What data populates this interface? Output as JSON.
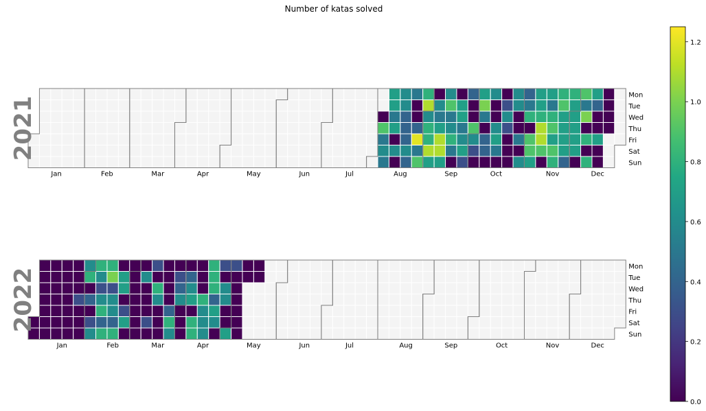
{
  "chart_data": {
    "type": "heatmap",
    "title": "Number of katas solved",
    "months": [
      "Jan",
      "Feb",
      "Mar",
      "Apr",
      "May",
      "Jun",
      "Jul",
      "Aug",
      "Sep",
      "Oct",
      "Nov",
      "Dec"
    ],
    "weekdays": [
      "Mon",
      "Tue",
      "Wed",
      "Thu",
      "Fri",
      "Sat",
      "Sun"
    ],
    "colorbar": {
      "min": 0.0,
      "max": 1.25,
      "ticks": [
        "0.0",
        "0.2",
        "0.4",
        "0.6",
        "0.8",
        "1.0",
        "1.2"
      ]
    },
    "colormap": "viridis",
    "missing_color": "#f4f4f4",
    "years": [
      {
        "year": "2021",
        "week_rows_note": "weeks indexed from week 0 containing Jan 1; rows Mon..Sun",
        "weeks": [
          {
            "week": 31,
            "values": [
              null,
              null,
              0.0,
              0.9,
              0.5,
              0.6,
              0.5
            ]
          },
          {
            "week": 32,
            "values": [
              0.7,
              0.7,
              0.5,
              0.7,
              0.0,
              0.6,
              0.0
            ]
          },
          {
            "week": 33,
            "values": [
              0.6,
              0.6,
              0.4,
              0.4,
              0.4,
              0.6,
              0.4
            ]
          },
          {
            "week": 34,
            "values": [
              0.5,
              0.0,
              0.0,
              0.4,
              1.2,
              0.5,
              0.9
            ]
          },
          {
            "week": 35,
            "values": [
              0.8,
              1.1,
              0.6,
              0.8,
              0.8,
              1.1,
              0.7
            ]
          },
          {
            "week": 36,
            "values": [
              0.0,
              0.6,
              0.5,
              0.7,
              1.1,
              1.1,
              0.7
            ]
          },
          {
            "week": 37,
            "values": [
              0.6,
              0.9,
              0.5,
              0.6,
              0.8,
              0.5,
              0.0
            ]
          },
          {
            "week": 38,
            "values": [
              0.0,
              0.7,
              0.7,
              0.5,
              0.6,
              0.7,
              0.3
            ]
          },
          {
            "week": 39,
            "values": [
              0.4,
              0.0,
              0.0,
              0.9,
              0.6,
              0.3,
              0.0
            ]
          },
          {
            "week": 40,
            "values": [
              0.7,
              1.0,
              0.5,
              0.0,
              0.4,
              0.4,
              0.0
            ]
          },
          {
            "week": 41,
            "values": [
              0.6,
              0.0,
              0.0,
              0.6,
              0.7,
              0.5,
              0.0
            ]
          },
          {
            "week": 42,
            "values": [
              0.0,
              0.3,
              0.6,
              0.3,
              0.0,
              0.0,
              0.0
            ]
          },
          {
            "week": 43,
            "values": [
              0.6,
              0.6,
              0.0,
              0.0,
              0.5,
              0.0,
              0.6
            ]
          },
          {
            "week": 44,
            "values": [
              0.4,
              0.5,
              0.8,
              0.0,
              0.9,
              0.9,
              0.7
            ]
          },
          {
            "week": 45,
            "values": [
              0.7,
              0.7,
              0.8,
              1.1,
              1.1,
              0.9,
              0.0
            ]
          },
          {
            "week": 46,
            "values": [
              0.7,
              0.5,
              0.8,
              0.9,
              0.7,
              0.9,
              0.8
            ]
          },
          {
            "week": 47,
            "values": [
              0.8,
              0.9,
              0.7,
              0.7,
              0.7,
              0.7,
              0.4
            ]
          },
          {
            "week": 48,
            "values": [
              0.8,
              0.7,
              0.7,
              0.7,
              0.7,
              0.7,
              0.0
            ]
          },
          {
            "week": 49,
            "values": [
              0.9,
              0.5,
              1.0,
              0.0,
              0.8,
              0.0,
              0.8
            ]
          },
          {
            "week": 50,
            "values": [
              0.7,
              0.4,
              0.0,
              0.0,
              0.7,
              0.0,
              0.0
            ]
          },
          {
            "week": 51,
            "values": [
              0.0,
              0.0,
              0.0,
              0.0,
              null,
              null,
              null
            ]
          }
        ]
      },
      {
        "year": "2022",
        "weeks": [
          {
            "week": 0,
            "values": [
              null,
              null,
              null,
              null,
              null,
              0.0,
              0.0
            ]
          },
          {
            "week": 1,
            "values": [
              0.0,
              0.0,
              0.0,
              0.0,
              0.0,
              0.0,
              0.0
            ]
          },
          {
            "week": 2,
            "values": [
              0.0,
              0.0,
              0.0,
              0.0,
              0.0,
              0.0,
              0.0
            ]
          },
          {
            "week": 3,
            "values": [
              0.0,
              0.0,
              0.0,
              0.0,
              0.0,
              0.0,
              0.0
            ]
          },
          {
            "week": 4,
            "values": [
              0.0,
              0.0,
              0.0,
              0.3,
              0.0,
              0.0,
              0.0
            ]
          },
          {
            "week": 5,
            "values": [
              0.6,
              0.8,
              0.0,
              0.4,
              0.0,
              0.3,
              0.6
            ]
          },
          {
            "week": 6,
            "values": [
              0.8,
              0.6,
              0.3,
              0.6,
              0.8,
              0.4,
              0.8
            ]
          },
          {
            "week": 7,
            "values": [
              0.8,
              1.0,
              0.3,
              0.6,
              0.6,
              0.4,
              0.8
            ]
          },
          {
            "week": 8,
            "values": [
              0.0,
              0.7,
              0.7,
              0.0,
              0.3,
              0.7,
              0.0
            ]
          },
          {
            "week": 9,
            "values": [
              0.0,
              0.0,
              0.0,
              0.0,
              0.0,
              0.0,
              0.0
            ]
          },
          {
            "week": 10,
            "values": [
              0.0,
              0.6,
              0.0,
              0.0,
              0.0,
              0.3,
              0.0
            ]
          },
          {
            "week": 11,
            "values": [
              0.3,
              0.0,
              0.8,
              0.6,
              0.0,
              0.0,
              0.0
            ]
          },
          {
            "week": 12,
            "values": [
              0.0,
              0.0,
              0.0,
              0.0,
              0.4,
              0.8,
              0.6
            ]
          },
          {
            "week": 13,
            "values": [
              0.0,
              0.3,
              0.4,
              0.6,
              0.0,
              0.0,
              0.0
            ]
          },
          {
            "week": 14,
            "values": [
              0.0,
              0.4,
              0.6,
              0.7,
              0.0,
              0.8,
              0.8
            ]
          },
          {
            "week": 15,
            "values": [
              0.0,
              0.0,
              0.0,
              0.8,
              0.6,
              0.6,
              0.6
            ]
          },
          {
            "week": 16,
            "values": [
              0.8,
              0.8,
              0.8,
              0.4,
              0.7,
              0.6,
              0.0
            ]
          },
          {
            "week": 17,
            "values": [
              0.3,
              0.0,
              0.6,
              0.6,
              0.0,
              0.0,
              0.7
            ]
          },
          {
            "week": 18,
            "values": [
              0.3,
              0.0,
              0.0,
              0.0,
              0.0,
              0.0,
              0.0
            ]
          },
          {
            "week": 19,
            "values": [
              0.0,
              0.0,
              null,
              null,
              null,
              null,
              null
            ]
          },
          {
            "week": 20,
            "values": [
              0.0,
              0.0,
              null,
              null,
              null,
              null,
              null
            ]
          }
        ]
      }
    ]
  }
}
